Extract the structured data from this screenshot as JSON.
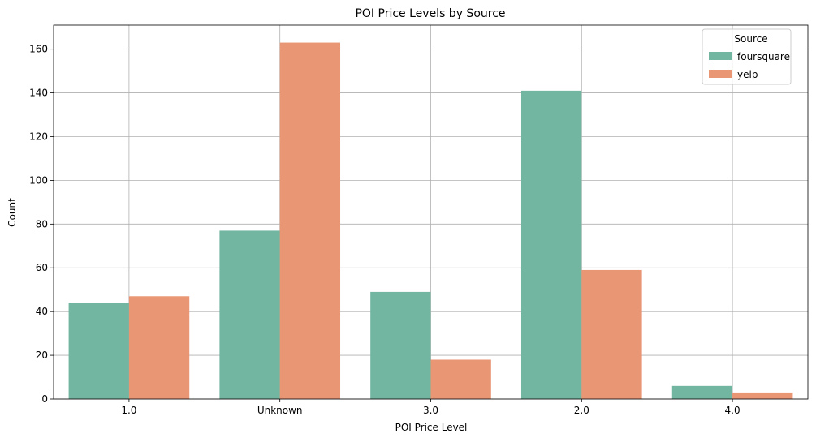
{
  "chart_data": {
    "type": "bar",
    "title": "POI Price Levels by Source",
    "xlabel": "POI Price Level",
    "ylabel": "Count",
    "categories": [
      "1.0",
      "Unknown",
      "3.0",
      "2.0",
      "4.0"
    ],
    "series": [
      {
        "name": "foursquare",
        "values": [
          44,
          77,
          49,
          141,
          6
        ],
        "color": "#72b6a1"
      },
      {
        "name": "yelp",
        "values": [
          47,
          163,
          18,
          59,
          3
        ],
        "color": "#e99675"
      }
    ],
    "ylim": [
      0,
      171
    ],
    "yticks": [
      0,
      20,
      40,
      60,
      80,
      100,
      120,
      140,
      160
    ],
    "grid": true,
    "legend": {
      "title": "Source",
      "placement": "top-right"
    }
  }
}
